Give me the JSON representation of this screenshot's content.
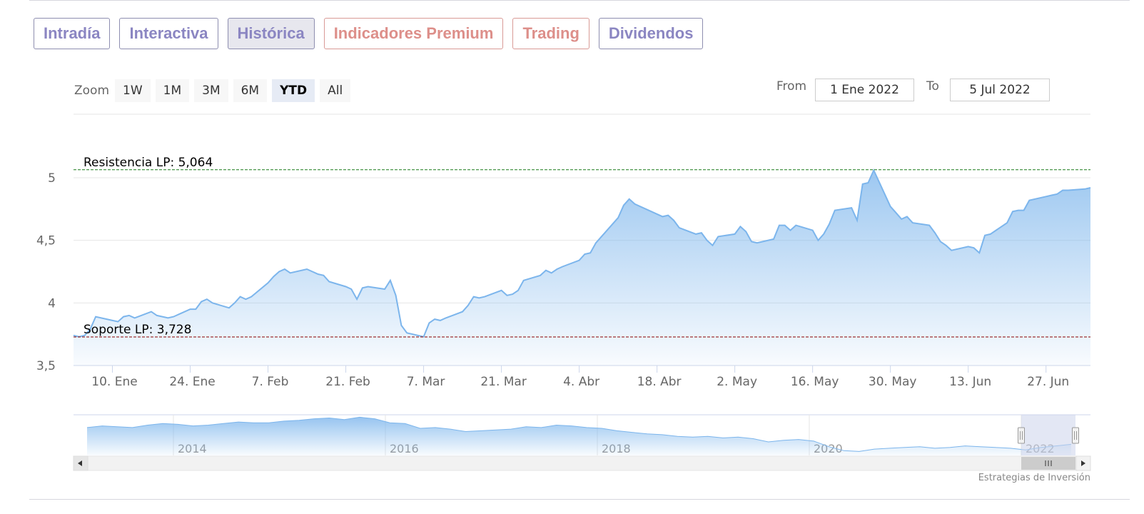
{
  "tabs": [
    {
      "label": "Intradía",
      "premium": false,
      "active": false
    },
    {
      "label": "Interactiva",
      "premium": false,
      "active": false
    },
    {
      "label": "Histórica",
      "premium": false,
      "active": true
    },
    {
      "label": "Indicadores Premium",
      "premium": true,
      "active": false
    },
    {
      "label": "Trading",
      "premium": true,
      "active": false
    },
    {
      "label": "Dividendos",
      "premium": false,
      "active": false
    }
  ],
  "zoom": {
    "label": "Zoom",
    "buttons": [
      "1W",
      "1M",
      "3M",
      "6M",
      "YTD",
      "All"
    ],
    "selected": "YTD"
  },
  "range": {
    "from_label": "From",
    "from_value": "1 Ene 2022",
    "to_label": "To",
    "to_value": "5 Jul 2022"
  },
  "credit": "Estrategias de Inversión",
  "colors": {
    "line": "#7cb5ec",
    "resistance": "#1a7a1a",
    "support": "#8b0000",
    "navigator_mask": "#ccd3eb"
  },
  "chart_data": {
    "type": "area",
    "x_start": "2022-01-03",
    "x_end": "2022-07-05",
    "ylim": [
      3.5,
      5.1
    ],
    "yticks": [
      3.5,
      4,
      4.5,
      5
    ],
    "ytick_labels": [
      "3,5",
      "4",
      "4,5",
      "5"
    ],
    "xtick_labels": [
      "10. Ene",
      "24. Ene",
      "7. Feb",
      "21. Feb",
      "7. Mar",
      "21. Mar",
      "4. Abr",
      "18. Abr",
      "2. May",
      "16. May",
      "30. May",
      "13. Jun",
      "27. Jun"
    ],
    "xtick_dates": [
      "2022-01-10",
      "2022-01-24",
      "2022-02-07",
      "2022-02-21",
      "2022-03-07",
      "2022-03-21",
      "2022-04-04",
      "2022-04-18",
      "2022-05-02",
      "2022-05-16",
      "2022-05-30",
      "2022-06-13",
      "2022-06-27"
    ],
    "plot_lines": [
      {
        "label": "Resistencia LP: 5,064",
        "value": 5.064,
        "color": "#1a7a1a"
      },
      {
        "label": "Soporte LP: 3,728",
        "value": 3.728,
        "color": "#8b0000"
      }
    ],
    "x": [
      "2022-01-03",
      "2022-01-04",
      "2022-01-05",
      "2022-01-06",
      "2022-01-07",
      "2022-01-10",
      "2022-01-11",
      "2022-01-12",
      "2022-01-13",
      "2022-01-14",
      "2022-01-17",
      "2022-01-18",
      "2022-01-19",
      "2022-01-20",
      "2022-01-21",
      "2022-01-24",
      "2022-01-25",
      "2022-01-26",
      "2022-01-27",
      "2022-01-28",
      "2022-01-31",
      "2022-02-01",
      "2022-02-02",
      "2022-02-03",
      "2022-02-04",
      "2022-02-07",
      "2022-02-08",
      "2022-02-09",
      "2022-02-10",
      "2022-02-11",
      "2022-02-14",
      "2022-02-15",
      "2022-02-16",
      "2022-02-17",
      "2022-02-18",
      "2022-02-21",
      "2022-02-22",
      "2022-02-23",
      "2022-02-24",
      "2022-02-25",
      "2022-02-28",
      "2022-03-01",
      "2022-03-02",
      "2022-03-03",
      "2022-03-04",
      "2022-03-07",
      "2022-03-08",
      "2022-03-09",
      "2022-03-10",
      "2022-03-11",
      "2022-03-14",
      "2022-03-15",
      "2022-03-16",
      "2022-03-17",
      "2022-03-18",
      "2022-03-21",
      "2022-03-22",
      "2022-03-23",
      "2022-03-24",
      "2022-03-25",
      "2022-03-28",
      "2022-03-29",
      "2022-03-30",
      "2022-03-31",
      "2022-04-01",
      "2022-04-04",
      "2022-04-05",
      "2022-04-06",
      "2022-04-07",
      "2022-04-08",
      "2022-04-11",
      "2022-04-12",
      "2022-04-13",
      "2022-04-14",
      "2022-04-19",
      "2022-04-20",
      "2022-04-21",
      "2022-04-22",
      "2022-04-25",
      "2022-04-26",
      "2022-04-27",
      "2022-04-28",
      "2022-04-29",
      "2022-05-02",
      "2022-05-03",
      "2022-05-04",
      "2022-05-05",
      "2022-05-06",
      "2022-05-09",
      "2022-05-10",
      "2022-05-11",
      "2022-05-12",
      "2022-05-13",
      "2022-05-16",
      "2022-05-17",
      "2022-05-18",
      "2022-05-19",
      "2022-05-20",
      "2022-05-23",
      "2022-05-24",
      "2022-05-25",
      "2022-05-26",
      "2022-05-27",
      "2022-05-30",
      "2022-05-31",
      "2022-06-01",
      "2022-06-02",
      "2022-06-03",
      "2022-06-06",
      "2022-06-07",
      "2022-06-08",
      "2022-06-09",
      "2022-06-10",
      "2022-06-13",
      "2022-06-14",
      "2022-06-15",
      "2022-06-16",
      "2022-06-17",
      "2022-06-20",
      "2022-06-21",
      "2022-06-22",
      "2022-06-23",
      "2022-06-24",
      "2022-06-27",
      "2022-06-28",
      "2022-06-29",
      "2022-06-30",
      "2022-07-01",
      "2022-07-04",
      "2022-07-05"
    ],
    "values": [
      3.74,
      3.73,
      3.74,
      3.79,
      3.89,
      3.86,
      3.85,
      3.89,
      3.9,
      3.88,
      3.93,
      3.9,
      3.89,
      3.88,
      3.89,
      3.95,
      3.95,
      4.01,
      4.03,
      4.0,
      3.96,
      4.0,
      4.05,
      4.03,
      4.05,
      4.16,
      4.21,
      4.25,
      4.27,
      4.24,
      4.27,
      4.25,
      4.23,
      4.22,
      4.17,
      4.13,
      4.11,
      4.03,
      4.12,
      4.13,
      4.11,
      4.18,
      4.06,
      3.82,
      3.76,
      3.73,
      3.84,
      3.87,
      3.86,
      3.88,
      3.93,
      3.98,
      4.05,
      4.04,
      4.05,
      4.1,
      4.06,
      4.07,
      4.1,
      4.18,
      4.22,
      4.26,
      4.24,
      4.27,
      4.29,
      4.34,
      4.39,
      4.4,
      4.48,
      4.53,
      4.68,
      4.78,
      4.83,
      4.79,
      4.69,
      4.7,
      4.66,
      4.6,
      4.55,
      4.56,
      4.5,
      4.46,
      4.53,
      4.55,
      4.61,
      4.57,
      4.49,
      4.48,
      4.51,
      4.62,
      4.62,
      4.58,
      4.62,
      4.58,
      4.5,
      4.55,
      4.63,
      4.74,
      4.76,
      4.66,
      4.95,
      4.96,
      5.06,
      4.77,
      4.72,
      4.67,
      4.69,
      4.64,
      4.62,
      4.56,
      4.49,
      4.46,
      4.42,
      4.45,
      4.44,
      4.4,
      4.54,
      4.55,
      4.64,
      4.73,
      4.74,
      4.74,
      4.82,
      4.85,
      4.86,
      4.87,
      4.9,
      4.9,
      4.91,
      4.92
    ],
    "navigator": {
      "xtick_labels": [
        "2014",
        "2016",
        "2018",
        "2020",
        "2022"
      ],
      "x_start_year": 2012.75,
      "x_end_year": 2022.55,
      "years": [
        2012.75,
        2012.9,
        2013.05,
        2013.2,
        2013.35,
        2013.5,
        2013.65,
        2013.8,
        2013.95,
        2014.1,
        2014.25,
        2014.4,
        2014.55,
        2014.7,
        2014.85,
        2015.0,
        2015.15,
        2015.3,
        2015.45,
        2015.6,
        2015.75,
        2015.9,
        2016.05,
        2016.2,
        2016.35,
        2016.5,
        2016.65,
        2016.8,
        2016.95,
        2017.1,
        2017.25,
        2017.4,
        2017.55,
        2017.7,
        2017.85,
        2018.0,
        2018.15,
        2018.3,
        2018.45,
        2018.6,
        2018.75,
        2018.9,
        2019.05,
        2019.2,
        2019.35,
        2019.5,
        2019.65,
        2019.8,
        2019.95,
        2020.1,
        2020.25,
        2020.4,
        2020.55,
        2020.7,
        2020.85,
        2021.0,
        2021.15,
        2021.3,
        2021.45,
        2021.6,
        2021.75,
        2021.9,
        2022.05,
        2022.2,
        2022.35,
        2022.5
      ],
      "values": [
        7.0,
        7.2,
        7.1,
        7.0,
        7.3,
        7.5,
        7.4,
        7.2,
        7.3,
        7.5,
        7.7,
        7.6,
        7.6,
        7.8,
        7.9,
        8.1,
        8.2,
        8.0,
        8.3,
        8.1,
        7.6,
        7.5,
        6.9,
        7.0,
        6.8,
        6.5,
        6.6,
        6.7,
        6.8,
        7.1,
        7.0,
        7.3,
        7.2,
        7.0,
        6.9,
        6.6,
        6.4,
        6.2,
        6.1,
        5.9,
        5.8,
        5.9,
        5.7,
        5.8,
        5.6,
        5.2,
        5.4,
        5.5,
        5.3,
        4.6,
        4.1,
        4.0,
        4.3,
        4.4,
        4.5,
        4.6,
        4.4,
        4.5,
        4.7,
        4.6,
        4.5,
        4.4,
        4.2,
        4.5,
        4.7,
        4.9
      ],
      "ylim": [
        3.5,
        8.6
      ],
      "selected_range": [
        "2022-01-01",
        "2022-07-05"
      ]
    }
  }
}
